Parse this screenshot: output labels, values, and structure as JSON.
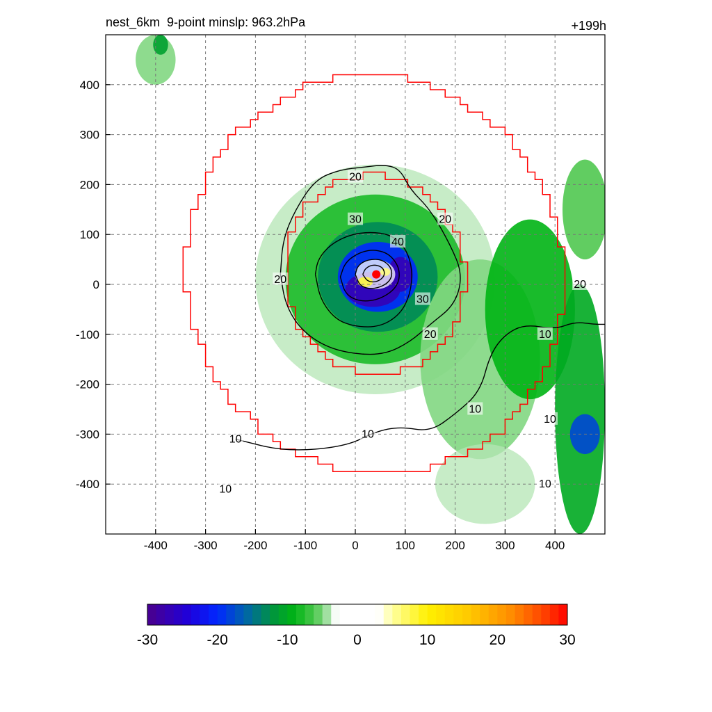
{
  "header": {
    "title": "nest_6km  9-point minslp: 963.2hPa",
    "forecast_hour": "+199h"
  },
  "chart_data": {
    "type": "heatmap",
    "title": "nest_6km  9-point minslp: 963.2hPa",
    "annotation_top_right": "+199h",
    "xlim": [
      -500,
      500
    ],
    "ylim": [
      -500,
      500
    ],
    "x_ticks": [
      -400,
      -300,
      -200,
      -100,
      0,
      100,
      200,
      300,
      400
    ],
    "y_ticks": [
      400,
      300,
      200,
      100,
      0,
      -100,
      -200,
      -300,
      -400
    ],
    "grid": true,
    "storm_center": {
      "x": 42,
      "y": 20
    },
    "filled_field_blobs": [
      {
        "x": 40,
        "y": 10,
        "rx": 240,
        "ry": 230,
        "value": -4
      },
      {
        "x": 40,
        "y": 10,
        "rx": 180,
        "ry": 170,
        "value": -8
      },
      {
        "x": 45,
        "y": 15,
        "rx": 120,
        "ry": 110,
        "value": -13
      },
      {
        "x": 45,
        "y": 15,
        "rx": 80,
        "ry": 70,
        "value": -20
      },
      {
        "x": 35,
        "y": -10,
        "rx": 55,
        "ry": 35,
        "value": -27
      },
      {
        "x": 90,
        "y": 20,
        "rx": 25,
        "ry": 35,
        "value": -27
      },
      {
        "x": 40,
        "y": 20,
        "rx": 40,
        "ry": 30,
        "value": 0
      },
      {
        "x": 20,
        "y": 5,
        "rx": 15,
        "ry": 10,
        "value": 8
      },
      {
        "x": 60,
        "y": 25,
        "rx": 10,
        "ry": 8,
        "value": 6
      },
      {
        "x": 250,
        "y": -150,
        "rx": 120,
        "ry": 200,
        "value": -5
      },
      {
        "x": 350,
        "y": -50,
        "rx": 90,
        "ry": 180,
        "value": -9
      },
      {
        "x": 450,
        "y": -250,
        "rx": 50,
        "ry": 250,
        "value": -10
      },
      {
        "x": 460,
        "y": -300,
        "rx": 30,
        "ry": 40,
        "value": -18
      },
      {
        "x": 460,
        "y": 150,
        "rx": 45,
        "ry": 100,
        "value": -6
      },
      {
        "x": -400,
        "y": 450,
        "rx": 40,
        "ry": 50,
        "value": -5
      },
      {
        "x": -390,
        "y": 480,
        "rx": 15,
        "ry": 20,
        "value": -11
      },
      {
        "x": -60,
        "y": 300,
        "rx": 80,
        "ry": 20,
        "value": 3
      },
      {
        "x": 120,
        "y": 360,
        "rx": 60,
        "ry": 18,
        "value": 3
      },
      {
        "x": -250,
        "y": 150,
        "rx": 45,
        "ry": 120,
        "value": -3
      },
      {
        "x": -420,
        "y": -120,
        "rx": 50,
        "ry": 40,
        "value": 3
      },
      {
        "x": -350,
        "y": -200,
        "rx": 80,
        "ry": 80,
        "value": -3
      },
      {
        "x": -220,
        "y": -430,
        "rx": 60,
        "ry": 60,
        "value": 3
      },
      {
        "x": -300,
        "y": -420,
        "rx": 80,
        "ry": 60,
        "value": -3
      },
      {
        "x": 260,
        "y": -400,
        "rx": 100,
        "ry": 80,
        "value": -4
      },
      {
        "x": 50,
        "y": -470,
        "rx": 80,
        "ry": 25,
        "value": -3
      }
    ],
    "contours": [
      {
        "label": "10",
        "points": [
          [
            -240,
            -310
          ],
          [
            -140,
            -335
          ],
          [
            -20,
            -325
          ],
          [
            40,
            -295
          ],
          [
            90,
            -285
          ],
          [
            150,
            -295
          ],
          [
            200,
            -260
          ],
          [
            250,
            -215
          ],
          [
            270,
            -140
          ],
          [
            300,
            -100
          ],
          [
            340,
            -80
          ],
          [
            400,
            -90
          ],
          [
            440,
            -75
          ],
          [
            480,
            -80
          ],
          [
            500,
            -80
          ]
        ]
      },
      {
        "label": "20",
        "points": [
          [
            -150,
            20
          ],
          [
            -140,
            -40
          ],
          [
            -110,
            -90
          ],
          [
            -60,
            -125
          ],
          [
            0,
            -140
          ],
          [
            60,
            -140
          ],
          [
            110,
            -115
          ],
          [
            150,
            -80
          ],
          [
            200,
            -40
          ],
          [
            215,
            20
          ],
          [
            190,
            80
          ],
          [
            150,
            150
          ],
          [
            110,
            190
          ],
          [
            90,
            230
          ],
          [
            60,
            240
          ],
          [
            20,
            235
          ],
          [
            -30,
            230
          ],
          [
            -80,
            210
          ],
          [
            -120,
            150
          ],
          [
            -145,
            90
          ],
          [
            -150,
            20
          ]
        ]
      },
      {
        "label": "30",
        "points": [
          [
            -80,
            20
          ],
          [
            -70,
            -30
          ],
          [
            -40,
            -70
          ],
          [
            0,
            -85
          ],
          [
            50,
            -85
          ],
          [
            90,
            -60
          ],
          [
            110,
            -20
          ],
          [
            115,
            30
          ],
          [
            100,
            75
          ],
          [
            70,
            100
          ],
          [
            30,
            105
          ],
          [
            -10,
            100
          ],
          [
            -50,
            80
          ],
          [
            -75,
            50
          ],
          [
            -80,
            20
          ]
        ]
      },
      {
        "label": "40",
        "points": [
          [
            -30,
            15
          ],
          [
            -20,
            -20
          ],
          [
            10,
            -35
          ],
          [
            50,
            -30
          ],
          [
            85,
            -5
          ],
          [
            90,
            30
          ],
          [
            70,
            60
          ],
          [
            40,
            70
          ],
          [
            10,
            65
          ],
          [
            -20,
            45
          ],
          [
            -30,
            15
          ]
        ]
      },
      {
        "label": "",
        "points": [
          [
            0,
            20
          ],
          [
            10,
            -5
          ],
          [
            40,
            -10
          ],
          [
            70,
            5
          ],
          [
            75,
            30
          ],
          [
            55,
            50
          ],
          [
            25,
            50
          ],
          [
            5,
            38
          ],
          [
            0,
            20
          ]
        ]
      },
      {
        "label": "",
        "points": [
          [
            15,
            20
          ],
          [
            25,
            5
          ],
          [
            45,
            5
          ],
          [
            60,
            18
          ],
          [
            55,
            35
          ],
          [
            35,
            40
          ],
          [
            20,
            32
          ],
          [
            15,
            20
          ]
        ]
      }
    ],
    "contour_label_positions": [
      {
        "label": "20",
        "x": 0,
        "y": 215
      },
      {
        "label": "20",
        "x": 180,
        "y": 130
      },
      {
        "label": "20",
        "x": -150,
        "y": 10
      },
      {
        "label": "20",
        "x": 150,
        "y": -100
      },
      {
        "label": "30",
        "x": 0,
        "y": 130
      },
      {
        "label": "30",
        "x": 135,
        "y": -30
      },
      {
        "label": "40",
        "x": 85,
        "y": 85
      },
      {
        "label": "10",
        "x": 240,
        "y": -250
      },
      {
        "label": "10",
        "x": 25,
        "y": -300
      },
      {
        "label": "10",
        "x": -240,
        "y": -310
      },
      {
        "label": "10",
        "x": -260,
        "y": -410
      },
      {
        "label": "10",
        "x": 380,
        "y": -100
      },
      {
        "label": "10",
        "x": 390,
        "y": -270
      },
      {
        "label": "10",
        "x": 380,
        "y": -400
      },
      {
        "label": "20",
        "x": 450,
        "y": 0
      }
    ],
    "boundary_rings": [
      {
        "name": "inner",
        "radius_x": 180,
        "radius_y": 200,
        "center": [
          40,
          20
        ]
      },
      {
        "name": "outer",
        "radius_x": 380,
        "radius_y": 400,
        "center": [
          40,
          20
        ]
      }
    ],
    "colorbar": {
      "min": -30,
      "max": 30,
      "labels": [
        "-30",
        "-20",
        "-10",
        "0",
        "10",
        "20",
        "30"
      ]
    }
  }
}
